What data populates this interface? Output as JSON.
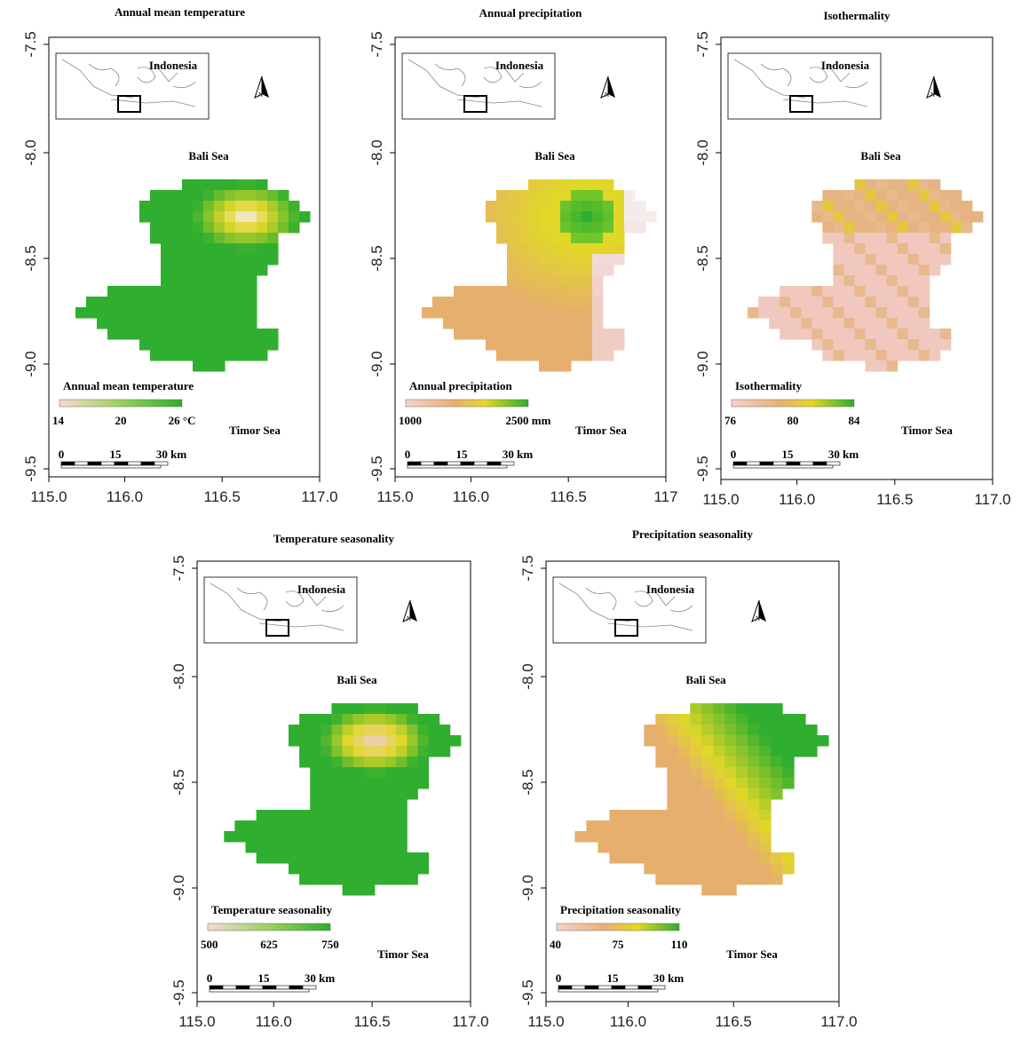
{
  "panels": [
    {
      "title": "Annual mean temperature",
      "inset_label": "Indonesia",
      "north": "N",
      "sea_north": "Bali Sea",
      "sea_south": "Timor Sea",
      "legend": {
        "title": "Annual mean temperature",
        "ticks": [
          "14",
          "20",
          "26 °C"
        ]
      },
      "scale": [
        "0",
        "15",
        "30 km"
      ],
      "x_ticks": [
        "115.0",
        "116.0",
        "116.5",
        "117.0"
      ],
      "y_ticks": [
        "-7.5",
        "-8.0",
        "-8.5",
        "-9.0",
        "-9.5"
      ]
    },
    {
      "title": "Annual precipitation",
      "inset_label": "Indonesia",
      "north": "N",
      "sea_north": "Bali Sea",
      "sea_south": "Timor Sea",
      "legend": {
        "title": "Annual precipitation",
        "ticks": [
          "1000",
          "2500 mm"
        ]
      },
      "scale": [
        "0",
        "15",
        "30 km"
      ],
      "x_ticks": [
        "115.0",
        "116.0",
        "116.5",
        "117"
      ],
      "y_ticks": [
        "-7.5",
        "-8.0",
        "-8.5",
        "-9.0",
        "-9.5"
      ]
    },
    {
      "title": "Isothermality",
      "inset_label": "Indonesia",
      "north": "N",
      "sea_north": "Bali Sea",
      "sea_south": "Timor Sea",
      "legend": {
        "title": "Isothermality",
        "ticks": [
          "76",
          "80",
          "84"
        ]
      },
      "scale": [
        "0",
        "15",
        "30 km"
      ],
      "x_ticks": [
        "115.0",
        "116.0",
        "116.5",
        "117.0"
      ],
      "y_ticks": [
        "-7.5",
        "-8.0",
        "-8.5",
        "-9.0",
        "-9.5"
      ]
    },
    {
      "title": "Temperature seasonality",
      "inset_label": "Indonesia",
      "north": "N",
      "sea_north": "Bali Sea",
      "sea_south": "Timor Sea",
      "legend": {
        "title": "Temperature seasonality",
        "ticks": [
          "500",
          "625",
          "750"
        ]
      },
      "scale": [
        "0",
        "15",
        "30 km"
      ],
      "x_ticks": [
        "115.0",
        "116.0",
        "116.5",
        "117.0"
      ],
      "y_ticks": [
        "-7.5",
        "-8.0",
        "-8.5",
        "-9.0",
        "-9.5"
      ]
    },
    {
      "title": "Precipitation seasonality",
      "inset_label": "Indonesia",
      "north": "N",
      "sea_north": "Bali Sea",
      "sea_south": "Timor Sea",
      "legend": {
        "title": "Precipitation seasonality",
        "ticks": [
          "40",
          "75",
          "110"
        ]
      },
      "scale": [
        "0",
        "15",
        "30 km"
      ],
      "x_ticks": [
        "115.0",
        "116.0",
        "116.5",
        "117.0"
      ],
      "y_ticks": [
        "-7.5",
        "-8.0",
        "-8.5",
        "-9.0",
        "-9.5"
      ]
    }
  ]
}
